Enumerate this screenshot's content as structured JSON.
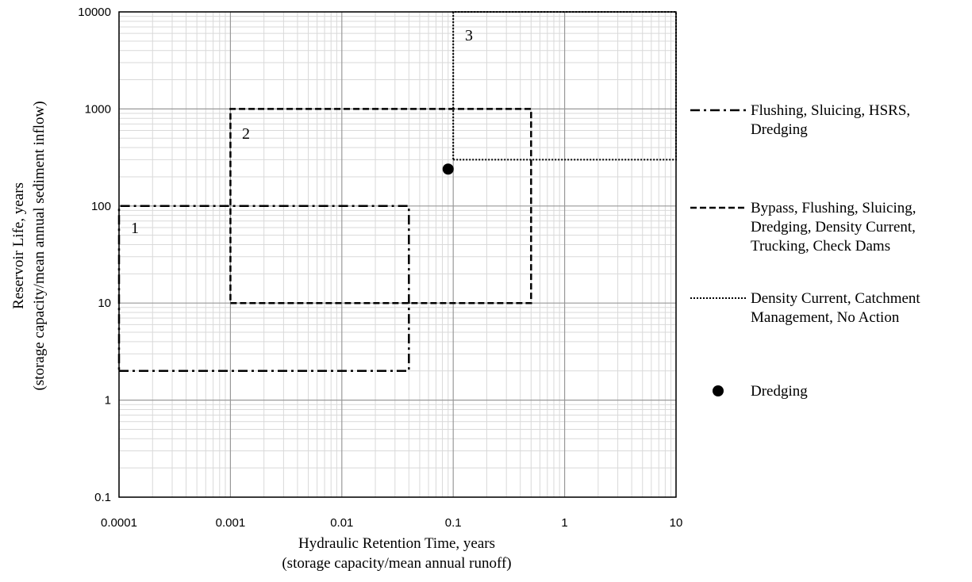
{
  "chart_data": {
    "type": "line",
    "xlabel": "Hydraulic Retention Time, years",
    "xlabel_sub": "(storage capacity/mean annual runoff)",
    "ylabel": "Reservoir Life, years",
    "ylabel_sub": "(storage capacity/mean annual sediment inflow)",
    "xscale": "log",
    "yscale": "log",
    "xlim": [
      0.0001,
      10
    ],
    "ylim": [
      0.1,
      10000
    ],
    "x_ticks": [
      0.0001,
      0.001,
      0.01,
      0.1,
      1,
      10
    ],
    "x_tick_labels": [
      "0.0001",
      "0.001",
      "0.01",
      "0.1",
      "1",
      "10"
    ],
    "y_ticks": [
      0.1,
      1,
      10,
      100,
      1000,
      10000
    ],
    "y_tick_labels": [
      "0.1",
      "1",
      "10",
      "100",
      "1000",
      "10000"
    ],
    "grid": true,
    "legend_position": "right",
    "series": [
      {
        "name": "Flushing, Sluicing, HSRS, Dredging",
        "legend_lines": [
          "Flushing, Sluicing, HSRS,",
          "Dredging"
        ],
        "style": "dash-dot",
        "region_label": "1",
        "x": [
          0.0001,
          0.04,
          0.04,
          0.0001,
          0.0001
        ],
        "y": [
          2,
          2,
          100,
          100,
          2
        ]
      },
      {
        "name": "Bypass, Flushing, Sluicing, Dredging, Density Current, Trucking, Check Dams",
        "legend_lines": [
          "Bypass, Flushing, Sluicing,",
          "Dredging, Density Current,",
          "Trucking, Check Dams"
        ],
        "style": "dashed",
        "region_label": "2",
        "x": [
          0.001,
          0.5,
          0.5,
          0.001,
          0.001
        ],
        "y": [
          10,
          10,
          1000,
          1000,
          10
        ]
      },
      {
        "name": "Density Current, Catchment Management, No Action",
        "legend_lines": [
          "Density Current, Catchment",
          "Management, No Action"
        ],
        "style": "dotted",
        "region_label": "3",
        "x": [
          0.1,
          10,
          10,
          0.1,
          0.1
        ],
        "y": [
          300,
          300,
          10000,
          10000,
          300
        ]
      }
    ],
    "points": [
      {
        "name": "Dredging",
        "legend_lines": [
          "Dredging"
        ],
        "x": 0.09,
        "y": 240
      }
    ],
    "colors": {
      "line": "#000000",
      "major_grid": "#999999",
      "minor_grid": "#d9d9d9"
    }
  }
}
